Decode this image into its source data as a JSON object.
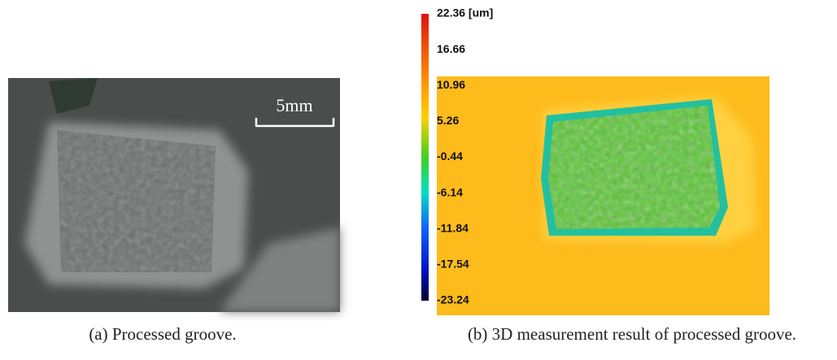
{
  "figure_a": {
    "scale_label": "5mm",
    "caption": "(a) Processed groove."
  },
  "figure_b": {
    "colorbar": {
      "labels": [
        "22.36 [um]",
        "16.66",
        "10.96",
        "5.26",
        "-0.44",
        "-6.14",
        "-11.84",
        "-17.54",
        "-23.24"
      ]
    },
    "caption": "(b) 3D measurement result of processed groove."
  }
}
